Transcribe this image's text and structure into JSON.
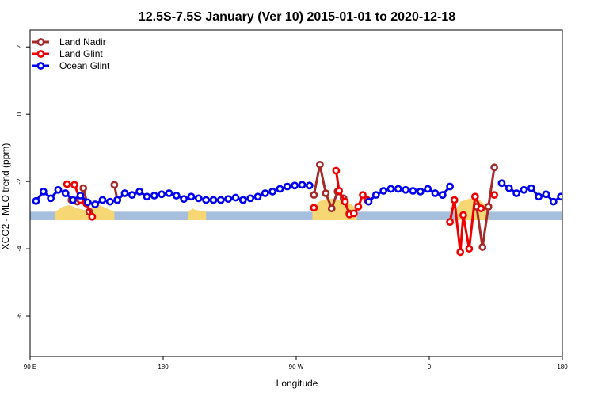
{
  "chart_data": {
    "type": "line",
    "title": "12.5S-7.5S January (Ver 10)   2015-01-01 to 2020-12-18",
    "xlabel": "Longitude",
    "ylabel": "XCO2 - MLO trend (ppm)",
    "xlim": [
      90,
      450
    ],
    "ylim": [
      -7.2,
      2.5
    ],
    "x_ticks": [
      {
        "value": 90,
        "label": "90 E"
      },
      {
        "value": 180,
        "label": "180"
      },
      {
        "value": 270,
        "label": "90 W"
      },
      {
        "value": 360,
        "label": "0"
      },
      {
        "value": 450,
        "label": "90 E"
      }
    ],
    "x_ticks_right_label": "180",
    "y_ticks": [
      {
        "value": 2,
        "label": "2"
      },
      {
        "value": 0,
        "label": "0"
      },
      {
        "value": -2,
        "label": "-2"
      },
      {
        "value": -4,
        "label": "-4"
      },
      {
        "value": -6,
        "label": "-6"
      }
    ],
    "legend_position": "top-left",
    "background_band": {
      "y_range": [
        -3.15,
        -2.9
      ],
      "color": "#a6bfdc"
    },
    "land_fill_color": "#f7d774",
    "land_regions": [
      {
        "x": [
          107,
          112,
          117,
          122,
          127,
          132,
          137,
          142,
          147
        ],
        "y_top": [
          -2.9,
          -2.75,
          -2.7,
          -2.8,
          -2.85,
          -2.75,
          -2.7,
          -2.8,
          -2.9
        ]
      },
      {
        "x": [
          281,
          285,
          292,
          298,
          304,
          308,
          311
        ],
        "y_top": [
          -2.9,
          -2.6,
          -2.5,
          -2.55,
          -2.6,
          -2.7,
          -2.9
        ]
      },
      {
        "x": [
          377,
          381,
          388,
          394,
          398,
          400
        ],
        "y_top": [
          -2.9,
          -2.6,
          -2.5,
          -2.55,
          -2.7,
          -2.9
        ]
      },
      {
        "x": [
          197,
          203,
          209
        ],
        "y_top": [
          -2.9,
          -2.85,
          -2.9
        ]
      },
      {
        "x": [
          197,
          200,
          204
        ],
        "y_top": [
          -2.9,
          -2.8,
          -2.9
        ]
      },
      {
        "x": [
          467,
          472,
          477,
          482,
          487,
          492,
          497,
          502,
          507
        ],
        "y_top": [
          -2.9,
          -2.75,
          -2.7,
          -2.8,
          -2.85,
          -2.75,
          -2.7,
          -2.8,
          -2.9
        ]
      }
    ],
    "series": [
      {
        "name": "Land Nadir",
        "color": "#a52a2a",
        "segments": [
          {
            "x": [
              118,
              122
            ],
            "y": [
              -2.55,
              -2.6
            ]
          },
          {
            "x": [
              126,
              130
            ],
            "y": [
              -2.2,
              -2.9
            ]
          },
          {
            "x": [
              147,
              149
            ],
            "y": [
              -2.1,
              -2.55
            ]
          },
          {
            "x": [
              282,
              286,
              290,
              294,
              298,
              302,
              306
            ],
            "y": [
              -2.4,
              -1.5,
              -2.35,
              -2.8,
              -2.3,
              -2.5,
              -2.95
            ]
          },
          {
            "x": [
              392,
              396,
              400
            ],
            "y": [
              -2.75,
              -3.95,
              -2.75
            ]
          },
          {
            "x": [
              400,
              404
            ],
            "y": [
              -2.75,
              -1.58
            ]
          },
          {
            "x": [
              478,
              482,
              486,
              490
            ],
            "y": [
              -2.55,
              -2.6,
              -2.2,
              -2.9
            ]
          },
          {
            "x": [
              507,
              509
            ],
            "y": [
              -2.1,
              -2.55
            ]
          }
        ]
      },
      {
        "name": "Land Glint",
        "color": "#ee0000",
        "segments": [
          {
            "x": [
              115,
              120,
              124,
              128,
              132
            ],
            "y": [
              -2.08,
              -2.1,
              -2.55,
              -2.65,
              -3.05
            ]
          },
          {
            "x": [
              282
            ],
            "y": [
              -2.78
            ]
          },
          {
            "x": [
              297,
              299,
              303,
              306,
              309,
              312,
              315,
              318
            ],
            "y": [
              -1.68,
              -2.28,
              -2.6,
              -2.98,
              -2.95,
              -2.75,
              -2.4,
              -2.55
            ]
          },
          {
            "x": [
              374,
              377,
              381,
              383,
              387,
              391,
              395
            ],
            "y": [
              -3.2,
              -2.55,
              -4.1,
              -3.0,
              -4.0,
              -2.45,
              -2.8
            ]
          },
          {
            "x": [
              404
            ],
            "y": [
              -2.4
            ]
          },
          {
            "x": [
              475,
              478,
              483,
              488,
              492
            ],
            "y": [
              -2.08,
              -2.15,
              -2.55,
              -2.65,
              -3.05
            ]
          },
          {
            "x": [
              504
            ],
            "y": [
              -2.55
            ]
          }
        ]
      },
      {
        "name": "Ocean Glint",
        "color": "#0000ee",
        "segments": [
          {
            "x": [
              94,
              99,
              104,
              109,
              114,
              119,
              124,
              129,
              134,
              139,
              144,
              149,
              154,
              159,
              164,
              169,
              174,
              179,
              184,
              189,
              194,
              199,
              204,
              209,
              214,
              219,
              224,
              229,
              234,
              239,
              244,
              249,
              254,
              259,
              264,
              269,
              274,
              279
            ],
            "y": [
              -2.58,
              -2.3,
              -2.5,
              -2.25,
              -2.35,
              -2.55,
              -2.42,
              -2.62,
              -2.68,
              -2.55,
              -2.6,
              -2.55,
              -2.35,
              -2.4,
              -2.3,
              -2.45,
              -2.42,
              -2.38,
              -2.35,
              -2.42,
              -2.52,
              -2.45,
              -2.5,
              -2.55,
              -2.55,
              -2.55,
              -2.52,
              -2.48,
              -2.55,
              -2.5,
              -2.45,
              -2.35,
              -2.3,
              -2.22,
              -2.15,
              -2.12,
              -2.1,
              -2.12
            ]
          },
          {
            "x": [
              319,
              324,
              329,
              334,
              339,
              344,
              349,
              354,
              359,
              364,
              369
            ],
            "y": [
              -2.6,
              -2.4,
              -2.28,
              -2.22,
              -2.22,
              -2.25,
              -2.28,
              -2.3,
              -2.22,
              -2.35,
              -2.4
            ]
          },
          {
            "x": [
              369,
              374
            ],
            "y": [
              -2.4,
              -2.15
            ]
          },
          {
            "x": [
              409,
              414,
              419,
              424,
              429,
              434,
              439,
              444,
              449,
              454,
              459,
              464,
              469,
              474,
              479,
              484,
              489,
              494,
              499,
              504,
              509,
              514,
              519,
              524,
              529,
              534,
              539,
              544,
              549
            ],
            "y": [
              -2.05,
              -2.2,
              -2.35,
              -2.25,
              -2.2,
              -2.45,
              -2.38,
              -2.6,
              -2.45,
              -2.55,
              -2.6,
              -2.3,
              -2.5,
              -2.25,
              -2.35,
              -2.55,
              -2.42,
              -2.62,
              -2.68,
              -2.55,
              -2.6,
              -2.55,
              -2.35,
              -2.4,
              -2.3,
              -2.45,
              -2.42,
              -2.38,
              -2.35
            ]
          }
        ]
      }
    ]
  }
}
